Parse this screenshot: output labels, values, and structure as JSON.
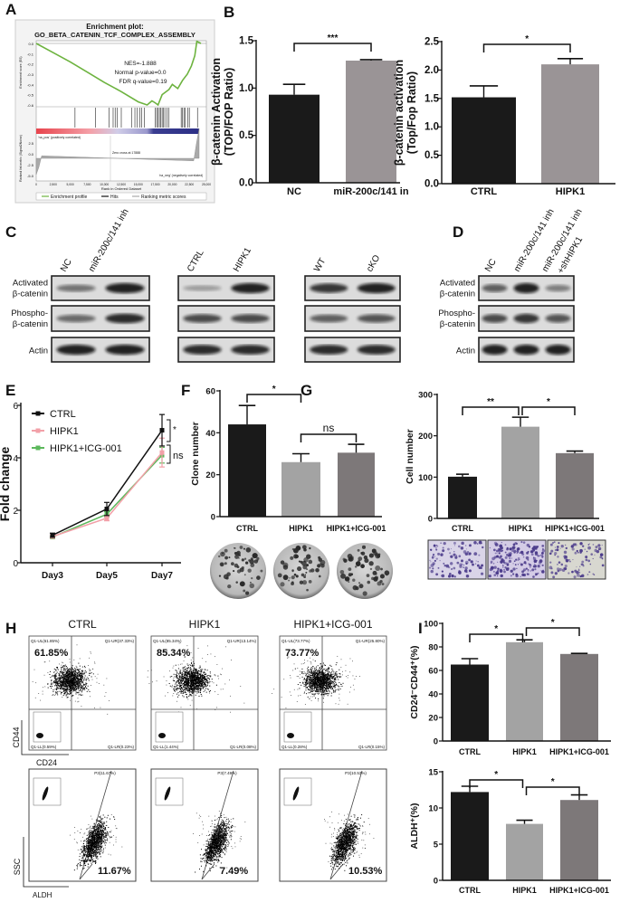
{
  "panel_labels": [
    "A",
    "B",
    "C",
    "D",
    "E",
    "F",
    "G",
    "H",
    "I"
  ],
  "gsea": {
    "title1": "Enrichment plot:",
    "title2": "GO_BETA_CATENIN_TCF_COMPLEX_ASSEMBLY",
    "nes": "NES=-1.888",
    "pval": "Normal p-value=0.0",
    "fdr": "FDR q-value=0.19",
    "pos_label": "'na_pos' (positively correlated)",
    "neg_label": "'na_neg' (negatively correlated)",
    "zero_cross": "Zero cross at 17888",
    "ylabel_top": "Enrichment score (ES)",
    "ylabel_bottom": "Ranked list metric (Signal2Noise)",
    "xlabel": "Rank in Ordered Dataset",
    "legend": [
      "Enrichment profile",
      "Hits",
      "Ranking metric scores"
    ],
    "es_ticks": [
      "0.0",
      "-0.1",
      "-0.2",
      "-0.3",
      "-0.4",
      "-0.5",
      "-0.6"
    ],
    "metric_ticks": [
      "2.5",
      "0.0",
      "-2.5",
      "-5.0"
    ],
    "rank_ticks": [
      "0",
      "2,500",
      "5,000",
      "7,500",
      "10,000",
      "12,500",
      "15,000",
      "17,500",
      "20,000",
      "22,500",
      "25,000"
    ],
    "rank_max": 25000,
    "es_curve": [
      [
        0,
        0
      ],
      [
        2500,
        -0.09
      ],
      [
        5000,
        -0.18
      ],
      [
        7500,
        -0.28
      ],
      [
        10000,
        -0.38
      ],
      [
        12500,
        -0.47
      ],
      [
        15000,
        -0.57
      ],
      [
        16300,
        -0.6
      ],
      [
        17000,
        -0.56
      ],
      [
        17500,
        -0.58
      ],
      [
        17900,
        -0.6
      ],
      [
        18500,
        -0.5
      ],
      [
        19500,
        -0.45
      ],
      [
        20000,
        -0.4
      ],
      [
        20800,
        -0.44
      ],
      [
        21500,
        -0.36
      ],
      [
        22200,
        -0.3
      ],
      [
        22800,
        -0.22
      ],
      [
        23300,
        -0.12
      ],
      [
        23600,
        0.02
      ],
      [
        24200,
        0.0
      ]
    ],
    "hits": [
      5700,
      8700,
      10700,
      11300,
      11600,
      11900,
      12500,
      14000,
      14500,
      14800,
      15200,
      15500,
      15900,
      17500,
      17700,
      17900,
      18100,
      18300,
      18500,
      18700,
      18900,
      19200,
      19500,
      21300,
      21500,
      21700,
      21900,
      22300,
      22500,
      23700
    ],
    "colors": {
      "curve": "#6db33f",
      "pos": "#e8434c",
      "neg": "#2c2f86"
    }
  },
  "blots": {
    "row_labels": [
      [
        "Activated",
        "β-catenin"
      ],
      [
        "Phospho-",
        "β-catenin"
      ],
      [
        "Actin"
      ]
    ],
    "C": [
      {
        "lanes": [
          "NC",
          "miR-200c/141 inh"
        ],
        "intensity": [
          [
            0.5,
            0.9
          ],
          [
            0.55,
            0.85
          ],
          [
            0.9,
            0.9
          ]
        ]
      },
      {
        "lanes": [
          "CTRL",
          "HIPK1"
        ],
        "intensity": [
          [
            0.3,
            0.9
          ],
          [
            0.7,
            0.7
          ],
          [
            0.85,
            0.85
          ]
        ]
      },
      {
        "lanes": [
          "WT",
          "cKO"
        ],
        "intensity": [
          [
            0.8,
            0.9
          ],
          [
            0.6,
            0.65
          ],
          [
            0.85,
            0.85
          ]
        ]
      }
    ],
    "D": {
      "lanes": [
        "NC",
        "miR-200c/141 inh",
        "miR-200c/141 inh",
        "+shHIPK1"
      ],
      "intensity": [
        [
          0.6,
          0.9,
          0.45
        ],
        [
          0.7,
          0.8,
          0.65
        ],
        [
          0.9,
          0.9,
          0.9
        ]
      ]
    }
  },
  "chart_data": [
    {
      "id": "B1",
      "type": "bar",
      "categories": [
        "NC",
        "miR-200c/141 in"
      ],
      "values": [
        0.93,
        1.29
      ],
      "errors": [
        0.11,
        0.01
      ],
      "ylabel": [
        "β-catenin Activation",
        "(TOP/FOP Ratio)"
      ],
      "ylim": [
        0,
        1.5
      ],
      "yticks": [
        "0.0",
        "0.5",
        "1.0",
        "1.5"
      ],
      "colors": [
        "#1a1a1a",
        "#9a9496"
      ],
      "significance": [
        {
          "pair": [
            0,
            1
          ],
          "label": "***"
        }
      ]
    },
    {
      "id": "B2",
      "type": "bar",
      "categories": [
        "CTRL",
        "HIPK1"
      ],
      "values": [
        1.52,
        2.1
      ],
      "errors": [
        0.2,
        0.1
      ],
      "ylabel": [
        "β-catenin activation",
        "(Top/Fop Ratio)"
      ],
      "ylim": [
        0,
        2.5
      ],
      "yticks": [
        "0.0",
        "0.5",
        "1.0",
        "1.5",
        "2.0",
        "2.5"
      ],
      "colors": [
        "#1a1a1a",
        "#9a9496"
      ],
      "significance": [
        {
          "pair": [
            0,
            1
          ],
          "label": "*"
        }
      ]
    },
    {
      "id": "E",
      "type": "line",
      "categories": [
        "Day3",
        "Day5",
        "Day7"
      ],
      "ylabel": "Fold change",
      "ylim": [
        0,
        6
      ],
      "yticks": [
        "0",
        "2",
        "4",
        "6"
      ],
      "series": [
        {
          "name": "CTRL",
          "values": [
            1.05,
            2.05,
            5.05
          ],
          "errors": [
            0.08,
            0.25,
            0.6
          ],
          "color": "#111111"
        },
        {
          "name": "HIPK1",
          "values": [
            1.0,
            1.7,
            4.2
          ],
          "errors": [
            0.05,
            0.1,
            0.55
          ],
          "color": "#f2a0a8"
        },
        {
          "name": "HIPK1+ICG-001",
          "values": [
            0.98,
            1.85,
            4.1
          ],
          "errors": [
            0.05,
            0.1,
            0.3
          ],
          "color": "#5cb85c"
        }
      ],
      "significance": [
        {
          "label": "*"
        },
        {
          "label": "ns"
        }
      ]
    },
    {
      "id": "F",
      "type": "bar",
      "categories": [
        "CTRL",
        "HIPK1",
        "HIPK1+ICG-001"
      ],
      "values": [
        44,
        26,
        30.5
      ],
      "errors": [
        9,
        4,
        4
      ],
      "ylabel": "Clone number",
      "ylim": [
        0,
        60
      ],
      "yticks": [
        "0",
        "20",
        "40",
        "60"
      ],
      "colors": [
        "#1a1a1a",
        "#a3a3a3",
        "#7d7879"
      ],
      "significance": [
        {
          "pair": [
            0,
            1
          ],
          "label": "*"
        },
        {
          "pair": [
            1,
            2
          ],
          "label": "ns"
        }
      ]
    },
    {
      "id": "G",
      "type": "bar",
      "categories": [
        "CTRL",
        "HIPK1",
        "HIPK1+ICG-001"
      ],
      "values": [
        101,
        222,
        158
      ],
      "errors": [
        6,
        23,
        5
      ],
      "ylabel": "Cell number",
      "ylim": [
        0,
        300
      ],
      "yticks": [
        "0",
        "100",
        "200",
        "300"
      ],
      "colors": [
        "#1a1a1a",
        "#a3a3a3",
        "#7d7879"
      ],
      "significance": [
        {
          "pair": [
            0,
            1
          ],
          "label": "**"
        },
        {
          "pair": [
            1,
            2
          ],
          "label": "*"
        }
      ]
    },
    {
      "id": "I1",
      "type": "bar",
      "categories": [
        "CTRL",
        "HIPK1",
        "HIPK1+ICG-001"
      ],
      "values": [
        65,
        84,
        74
      ],
      "errors": [
        5,
        2,
        0.5
      ],
      "ylabel": "CD24⁻CD44⁺(%)",
      "ylim": [
        0,
        100
      ],
      "yticks": [
        "0",
        "20",
        "40",
        "60",
        "80",
        "100"
      ],
      "colors": [
        "#1a1a1a",
        "#a3a3a3",
        "#7d7879"
      ],
      "significance": [
        {
          "pair": [
            0,
            1
          ],
          "label": "*"
        },
        {
          "pair": [
            1,
            2
          ],
          "label": "*"
        }
      ]
    },
    {
      "id": "I2",
      "type": "bar",
      "categories": [
        "CTRL",
        "HIPK1",
        "HIPK1+ICG-001"
      ],
      "values": [
        12.2,
        7.8,
        11.1
      ],
      "errors": [
        0.8,
        0.5,
        0.7
      ],
      "ylabel": "ALDH⁺(%)",
      "ylim": [
        0,
        15
      ],
      "yticks": [
        "0",
        "5",
        "10",
        "15"
      ],
      "colors": [
        "#1a1a1a",
        "#a3a3a3",
        "#7d7879"
      ],
      "significance": [
        {
          "pair": [
            0,
            1
          ],
          "label": "*"
        },
        {
          "pair": [
            1,
            2
          ],
          "label": "*"
        }
      ]
    }
  ],
  "flow": {
    "titles": [
      "CTRL",
      "HIPK1",
      "HIPK1+ICG-001"
    ],
    "top": [
      {
        "ul": "Q1-UL(61.85%)",
        "ur": "Q1-UR(37.33%)",
        "ll": "Q1-LL(0.59%)",
        "lr": "Q1-LR(0.23%)",
        "big": "61.85%"
      },
      {
        "ul": "Q1-UL(85.34%)",
        "ur": "Q1-UR(13.14%)",
        "ll": "Q1-LL(1.44%)",
        "lr": "Q1-LR(0.08%)",
        "big": "85.34%"
      },
      {
        "ul": "Q1-UL(73.77%)",
        "ur": "Q1-UR(25.80%)",
        "ll": "Q1-LL(0.28%)",
        "lr": "Q1-LR(0.15%)",
        "big": "73.77%"
      }
    ],
    "bottom": [
      {
        "gate": "P3(11.67%)",
        "big": "11.67%"
      },
      {
        "gate": "P3(7.49%)",
        "big": "7.49%"
      },
      {
        "gate": "P3(10.53%)",
        "big": "10.53%"
      }
    ],
    "axes": {
      "top_y": "CD44",
      "top_x": "CD24",
      "bottom_y": "SSC",
      "bottom_x": "ALDH"
    }
  }
}
